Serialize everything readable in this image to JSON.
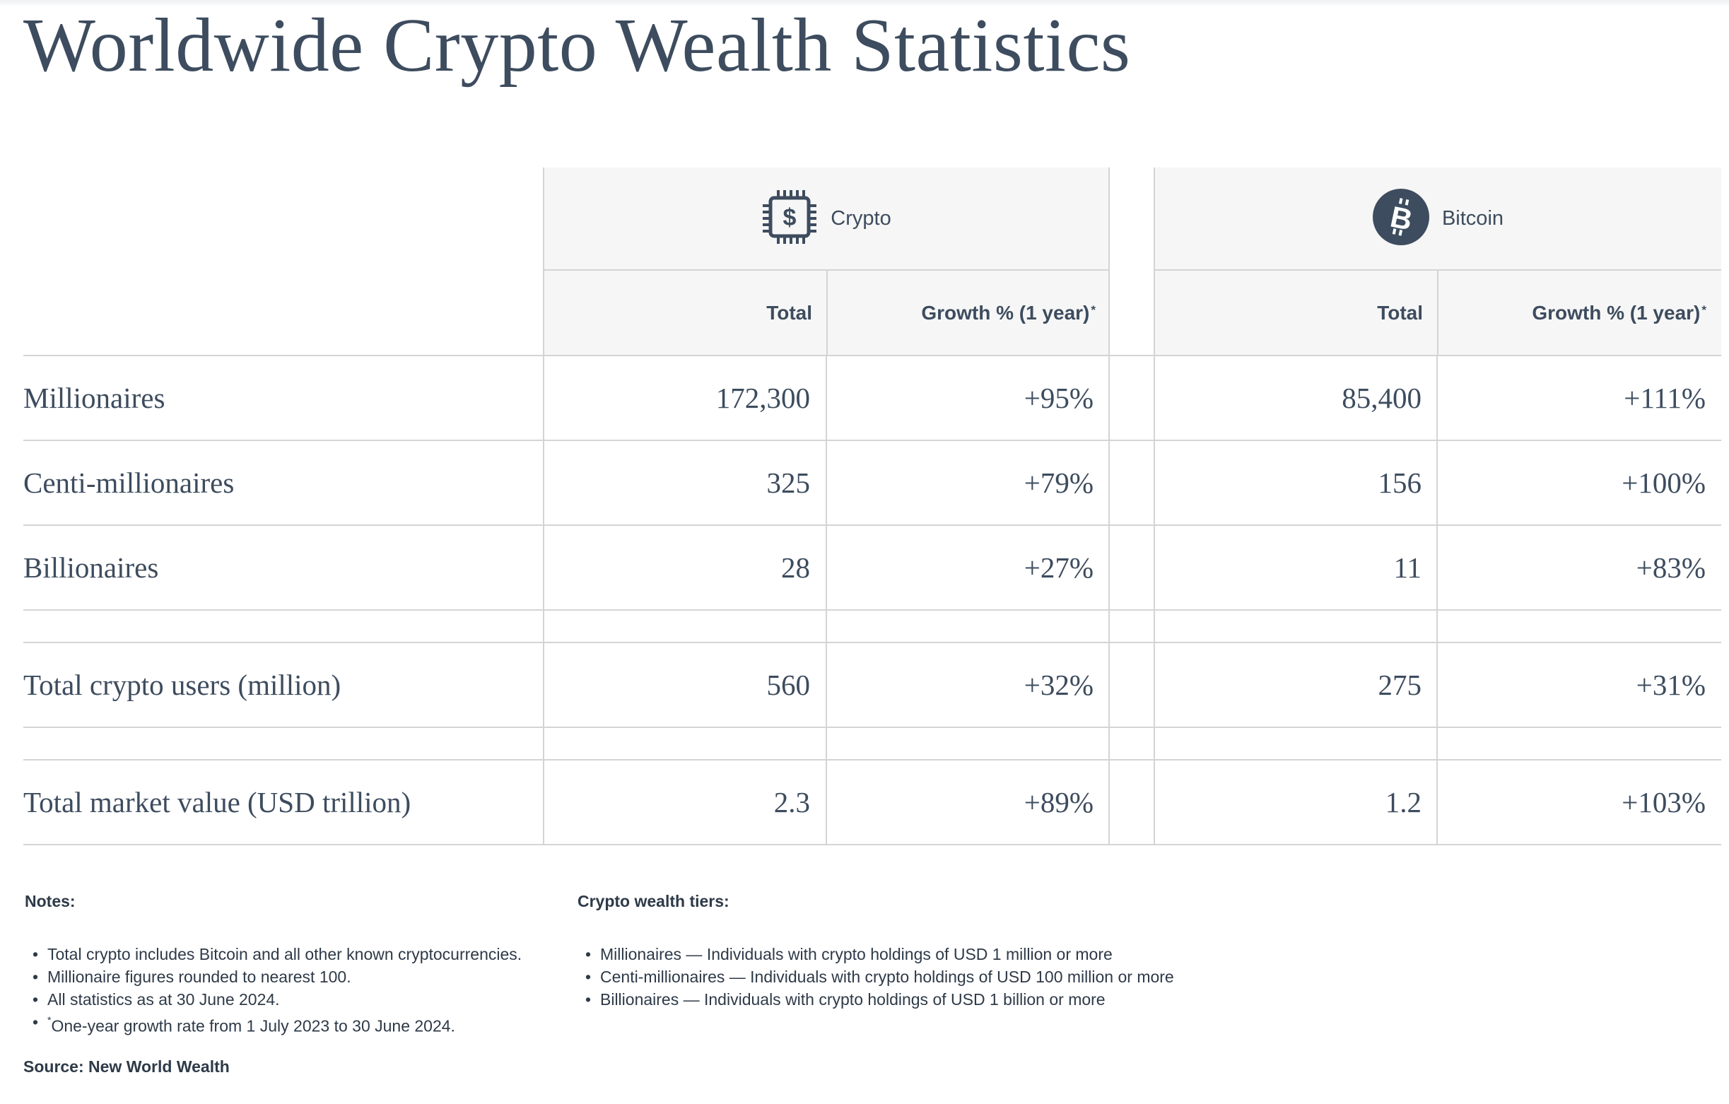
{
  "title": "Worldwide Crypto Wealth Statistics",
  "colors": {
    "text": "#3d4c5e",
    "header_bg": "#f6f6f6",
    "rule": "#d4d4d4"
  },
  "groups": [
    {
      "label": "Crypto",
      "icon": "dollar-chip-icon",
      "total_label": "Total",
      "growth_label": "Growth % (1 year)",
      "growth_mark": "*"
    },
    {
      "label": "Bitcoin",
      "icon": "bitcoin-icon",
      "total_label": "Total",
      "growth_label": "Growth % (1 year)",
      "growth_mark": "*"
    }
  ],
  "rows": [
    {
      "label": "Millionaires",
      "crypto_total": "172,300",
      "crypto_growth": "+95%",
      "bitcoin_total": "85,400",
      "bitcoin_growth": "+111%"
    },
    {
      "label": "Centi-millionaires",
      "crypto_total": "325",
      "crypto_growth": "+79%",
      "bitcoin_total": "156",
      "bitcoin_growth": "+100%"
    },
    {
      "label": "Billionaires",
      "crypto_total": "28",
      "crypto_growth": "+27%",
      "bitcoin_total": "11",
      "bitcoin_growth": "+83%"
    },
    {
      "label": "Total crypto users (million)",
      "crypto_total": "560",
      "crypto_growth": "+32%",
      "bitcoin_total": "275",
      "bitcoin_growth": "+31%"
    },
    {
      "label": "Total market value (USD trillion)",
      "crypto_total": "2.3",
      "crypto_growth": "+89%",
      "bitcoin_total": "1.2",
      "bitcoin_growth": "+103%"
    }
  ],
  "notes": {
    "heading": "Notes:",
    "items": [
      "Total crypto includes Bitcoin and all other known cryptocurrencies.",
      "Millionaire figures rounded to nearest 100.",
      "All statistics as at 30 June 2024."
    ],
    "growth_note_mark": "*",
    "growth_note": "One-year growth rate from 1 July 2023 to 30 June 2024."
  },
  "tiers": {
    "heading": "Crypto wealth tiers:",
    "items": [
      "Millionaires — Individuals with crypto holdings of USD 1 million or more",
      "Centi-millionaires — Individuals with crypto holdings of USD 100 million or more",
      "Billionaires — Individuals with crypto holdings of USD 1 billion or more"
    ]
  },
  "source": "Source: New World Wealth"
}
